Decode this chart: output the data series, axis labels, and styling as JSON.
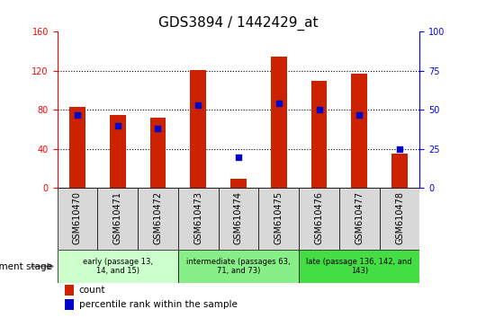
{
  "title": "GDS3894 / 1442429_at",
  "categories": [
    "GSM610470",
    "GSM610471",
    "GSM610472",
    "GSM610473",
    "GSM610474",
    "GSM610475",
    "GSM610476",
    "GSM610477",
    "GSM610478"
  ],
  "count_values": [
    83,
    75,
    72,
    121,
    10,
    135,
    110,
    117,
    35
  ],
  "percentile_values": [
    47,
    40,
    38,
    53,
    20,
    54,
    50,
    47,
    25
  ],
  "ylim_left": [
    0,
    160
  ],
  "ylim_right": [
    0,
    100
  ],
  "bar_color": "#cc2200",
  "square_color": "#0000cc",
  "background_color": "#ffffff",
  "plot_bg_color": "#ffffff",
  "tick_bg_color": "#d8d8d8",
  "stage_groups": [
    {
      "label": "early (passage 13,\n14, and 15)",
      "start": 0,
      "end": 3,
      "color": "#ccffcc"
    },
    {
      "label": "intermediate (passages 63,\n71, and 73)",
      "start": 3,
      "end": 6,
      "color": "#88ee88"
    },
    {
      "label": "late (passage 136, 142, and\n143)",
      "start": 6,
      "end": 9,
      "color": "#44dd44"
    }
  ],
  "legend_count_label": "count",
  "legend_percentile_label": "percentile rank within the sample",
  "dev_stage_label": "development stage",
  "title_fontsize": 11,
  "tick_fontsize": 7,
  "label_fontsize": 8
}
